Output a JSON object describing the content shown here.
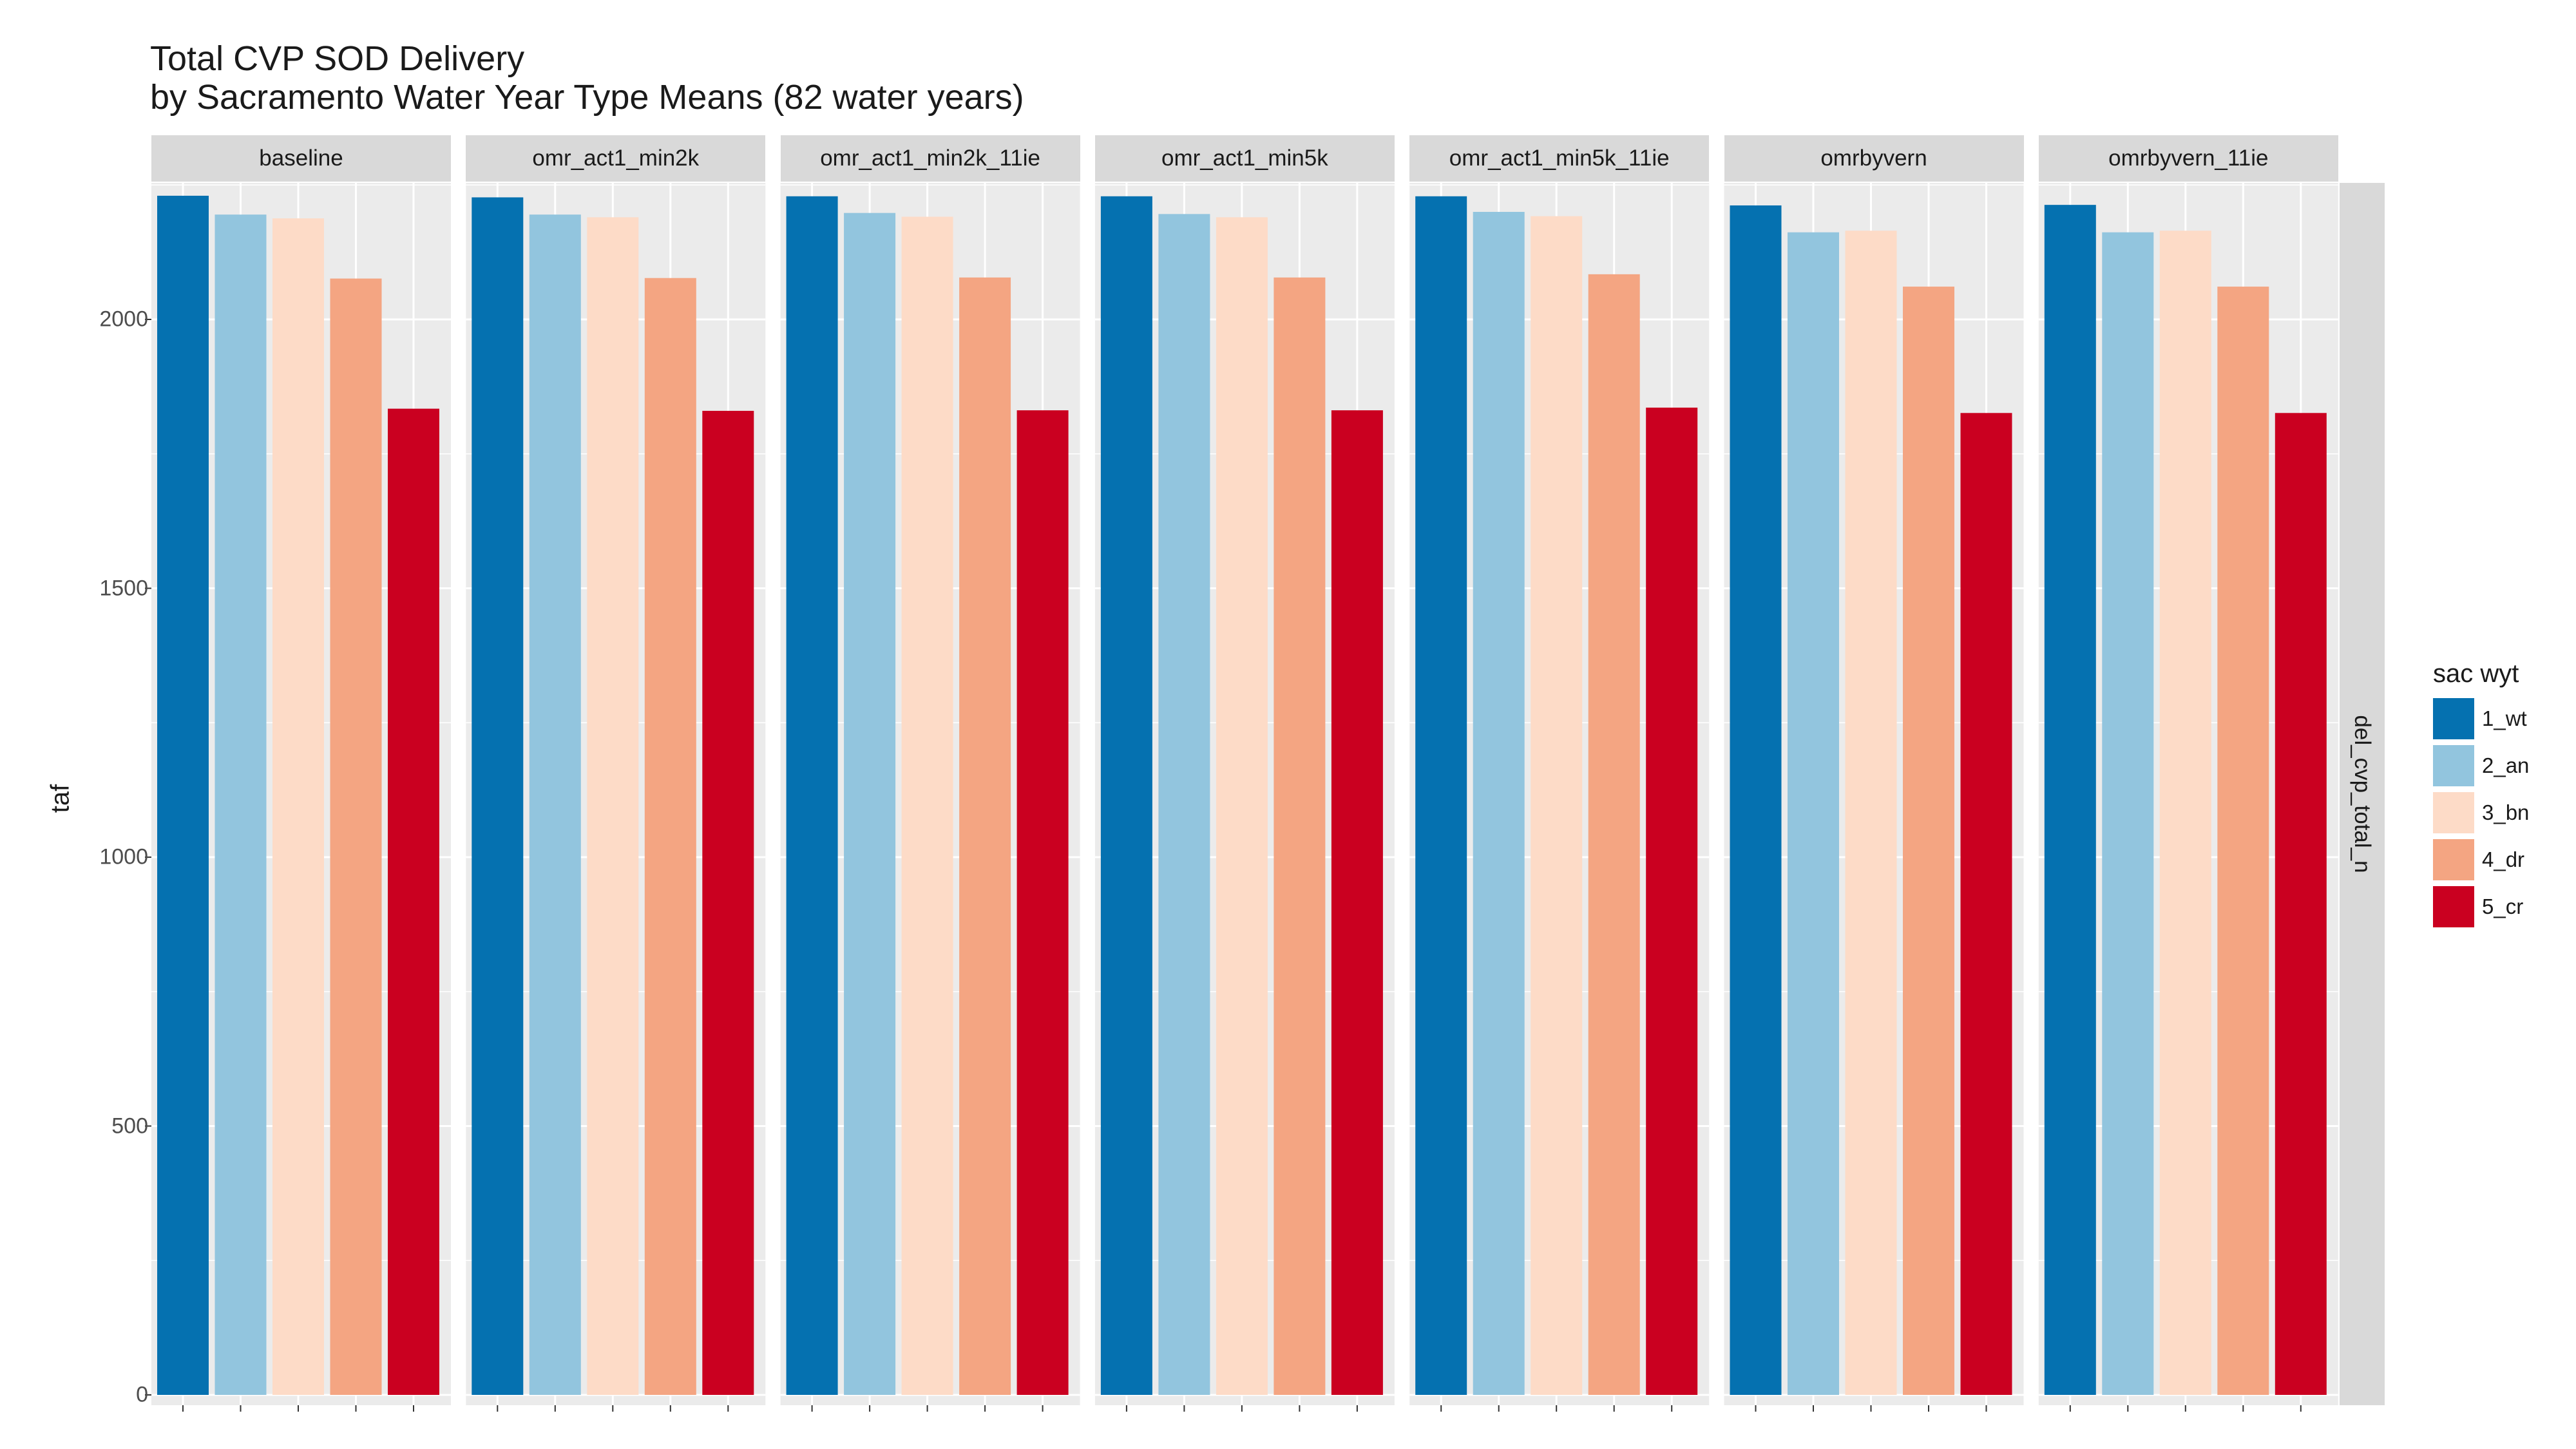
{
  "chart_data": {
    "type": "bar",
    "title": "Total CVP SOD Delivery",
    "subtitle": "by Sacramento Water Year Type Means (82 water years)",
    "xlabel": "",
    "ylabel": "taf",
    "ylim": [
      0,
      2260
    ],
    "yticks": [
      "0",
      "500",
      "1000",
      "1500",
      "2000"
    ],
    "grid": true,
    "row_facet": "del_cvp_total_n",
    "legend": {
      "title": "sac wyt",
      "placement": "right",
      "entries": [
        "1_wt",
        "2_an",
        "3_bn",
        "4_dr",
        "5_cr"
      ],
      "colors": [
        "#0571b0",
        "#92c5de",
        "#fddbc7",
        "#f4a582",
        "#ca0020"
      ]
    },
    "facets": [
      "baseline",
      "omr_act1_min2k",
      "omr_act1_min2k_11ie",
      "omr_act1_min5k",
      "omr_act1_min5k_11ie",
      "omrbyvern",
      "omrbyvern_11ie"
    ],
    "series": [
      {
        "name": "1_wt",
        "values": [
          2230,
          2227,
          2229,
          2229,
          2229,
          2212,
          2213
        ]
      },
      {
        "name": "2_an",
        "values": [
          2195,
          2195,
          2198,
          2196,
          2200,
          2162,
          2162
        ]
      },
      {
        "name": "3_bn",
        "values": [
          2188,
          2190,
          2191,
          2190,
          2192,
          2165,
          2165
        ]
      },
      {
        "name": "4_dr",
        "values": [
          2076,
          2077,
          2078,
          2078,
          2084,
          2061,
          2061
        ]
      },
      {
        "name": "5_cr",
        "values": [
          1834,
          1830,
          1831,
          1831,
          1836,
          1826,
          1826
        ]
      }
    ]
  }
}
